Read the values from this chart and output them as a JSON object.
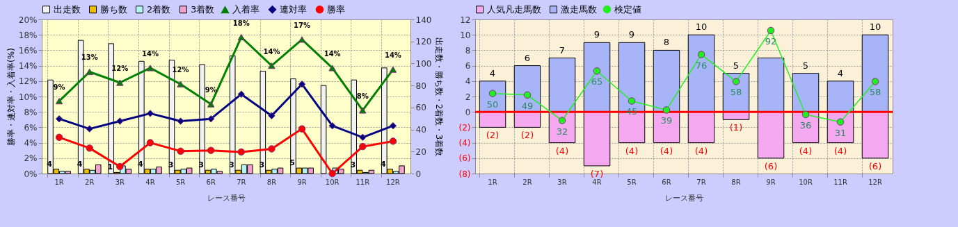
{
  "chart_data": [
    {
      "type": "bar",
      "categories": [
        "1R",
        "2R",
        "3R",
        "4R",
        "5R",
        "6R",
        "7R",
        "8R",
        "9R",
        "10R",
        "11R",
        "12R"
      ],
      "xlabel": "レース番号",
      "ylabel": "勝率・連対率・入着率(%)",
      "y2label": "出走数・勝ち数・2着数・3着数",
      "ylim": [
        0,
        20
      ],
      "yticks": [
        {
          "value": 0,
          "label": "0%"
        },
        {
          "value": 2,
          "label": "2%"
        },
        {
          "value": 4,
          "label": "4%"
        },
        {
          "value": 6,
          "label": "6%"
        },
        {
          "value": 8,
          "label": "8%"
        },
        {
          "value": 10,
          "label": "10%"
        },
        {
          "value": 12,
          "label": "12%"
        },
        {
          "value": 14,
          "label": "14%"
        },
        {
          "value": 16,
          "label": "16%"
        },
        {
          "value": 18,
          "label": "18%"
        },
        {
          "value": 20,
          "label": "20%"
        }
      ],
      "y2lim": [
        0,
        140
      ],
      "y2ticks": [
        0,
        20,
        40,
        60,
        80,
        100,
        120,
        140
      ],
      "grid": true,
      "legend": "top",
      "series": [
        {
          "name": "出走数",
          "color": "#f2f2f2",
          "axis": "y2",
          "values": [
            85,
            121,
            118,
            102,
            103,
            99,
            107,
            93,
            86,
            80,
            85,
            96
          ]
        },
        {
          "name": "勝ち数",
          "color": "#f0c000",
          "axis": "y2",
          "values": [
            4,
            4,
            1,
            4,
            3,
            3,
            3,
            3,
            5,
            null,
            3,
            4
          ],
          "value_labels": [
            "4",
            "4",
            "1",
            "4",
            "3",
            "3",
            "3",
            "3",
            "5",
            null,
            "3",
            "4"
          ]
        },
        {
          "name": "2着数",
          "color": "#b4f4f4",
          "axis": "y2",
          "values": [
            2,
            3,
            7,
            4,
            4,
            4,
            8,
            4,
            5,
            5,
            1,
            2
          ]
        },
        {
          "name": "3着数",
          "color": "#f2a0d0",
          "axis": "y2",
          "values": [
            2,
            8,
            4,
            6,
            5,
            2,
            8,
            5,
            5,
            4,
            3,
            7
          ]
        },
        {
          "name": "入着率",
          "type": "line",
          "marker": "triangle",
          "color": "#008000",
          "values": [
            9.4,
            13.2,
            11.8,
            13.7,
            11.6,
            9.0,
            17.7,
            14.0,
            17.4,
            13.7,
            8.2,
            13.5
          ],
          "value_labels": [
            "9%",
            "13%",
            "12%",
            "14%",
            "12%",
            "9%",
            "18%",
            "14%",
            "17%",
            "14%",
            "8%",
            "14%"
          ]
        },
        {
          "name": "連対率",
          "type": "line",
          "marker": "diamond",
          "color": "#000080",
          "values": [
            7.1,
            5.8,
            6.8,
            7.8,
            6.8,
            7.1,
            10.3,
            7.5,
            11.6,
            6.2,
            4.7,
            6.2
          ]
        },
        {
          "name": "勝率",
          "type": "line",
          "marker": "circle",
          "color": "#ff0000",
          "values": [
            4.7,
            3.3,
            0.9,
            4.0,
            2.9,
            3.0,
            2.8,
            3.2,
            5.8,
            0,
            3.5,
            4.2
          ]
        }
      ]
    },
    {
      "type": "bar",
      "stacked": true,
      "categories": [
        "1R",
        "2R",
        "3R",
        "4R",
        "5R",
        "6R",
        "7R",
        "8R",
        "9R",
        "10R",
        "11R",
        "12R"
      ],
      "xlabel": "レース番号",
      "ylim": [
        -8,
        12
      ],
      "yticks": [
        {
          "value": -8,
          "label": "(8)"
        },
        {
          "value": -6,
          "label": "(6)"
        },
        {
          "value": -4,
          "label": "(4)"
        },
        {
          "value": -2,
          "label": "(2)"
        },
        0,
        2,
        4,
        6,
        8,
        10,
        12
      ],
      "y2lim": [
        -3.4,
        99.4
      ],
      "grid": true,
      "legend": "top",
      "ref_lines": [
        {
          "axis": "y",
          "value": 0,
          "color": "#ff0000"
        }
      ],
      "series": [
        {
          "name": "人気凡走馬数",
          "color": "#f4a8f0",
          "values": [
            -2,
            -2,
            -4,
            -7,
            -4,
            -4,
            -4,
            -1,
            -6,
            -4,
            -4,
            -6
          ],
          "value_labels": [
            "(2)",
            "(2)",
            "(4)",
            "(7)",
            "(4)",
            "(4)",
            "(4)",
            "(1)",
            "(6)",
            "(4)",
            "(4)",
            "(6)"
          ]
        },
        {
          "name": "激走馬数",
          "color": "#a8b4f8",
          "values": [
            4,
            6,
            7,
            9,
            9,
            8,
            10,
            5,
            7,
            5,
            4,
            10
          ],
          "value_labels": [
            "4",
            "6",
            "7",
            "9",
            "9",
            "8",
            "10",
            "5",
            null,
            "5",
            "4",
            "10"
          ]
        },
        {
          "name": "検定値",
          "type": "line",
          "marker": "circle",
          "axis": "y2",
          "color": "#22ee22",
          "values": [
            50,
            49,
            32,
            65,
            45,
            39,
            76,
            58,
            92,
            36,
            31,
            58
          ],
          "data_labels": true
        }
      ]
    }
  ]
}
